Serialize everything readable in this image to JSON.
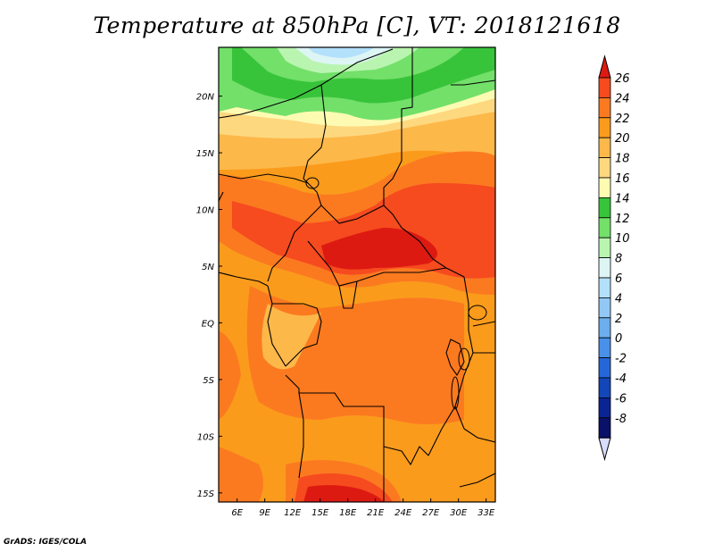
{
  "title": "Temperature at 850hPa [C], VT: 2018121618",
  "credit": "GrADS: IGES/COLA",
  "map": {
    "lon_range": [
      4,
      34
    ],
    "lat_range": [
      -15.8,
      24.3
    ],
    "lon_ticks": [
      "6E",
      "9E",
      "12E",
      "15E",
      "18E",
      "21E",
      "24E",
      "27E",
      "30E",
      "33E"
    ],
    "lat_ticks": [
      "20N",
      "15N",
      "10N",
      "5N",
      "EQ",
      "5S",
      "10S",
      "15S"
    ]
  },
  "colorbar": {
    "labels": [
      "26",
      "24",
      "22",
      "20",
      "18",
      "16",
      "14",
      "12",
      "10",
      "8",
      "6",
      "4",
      "2",
      "0",
      "-2",
      "-4",
      "-6",
      "-8"
    ],
    "colors": [
      "#dd1a12",
      "#f64a1f",
      "#fb7a20",
      "#fb9b1c",
      "#fdb84a",
      "#fed87f",
      "#fdfbb2",
      "#38c43a",
      "#73e06a",
      "#b9f5b0",
      "#ddf5f4",
      "#b3e0fb",
      "#92c8f5",
      "#6daeef",
      "#4890ea",
      "#2567d8",
      "#1346b9",
      "#0b2494",
      "#0a1168"
    ],
    "top_arrow_color": "#dd1a12",
    "bottom_arrow_color": "#d8dcff"
  }
}
